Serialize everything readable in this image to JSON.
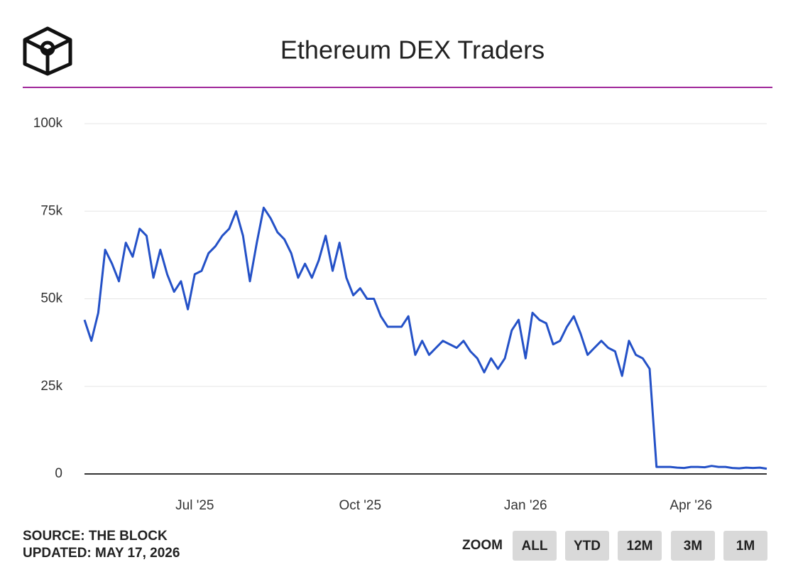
{
  "chart_data": {
    "type": "line",
    "title": "Ethereum DEX Traders",
    "categories": [
      null,
      null,
      null,
      null,
      null,
      null,
      null,
      null,
      null,
      null,
      null,
      null,
      null,
      null,
      null,
      null,
      "Jul '25",
      null,
      null,
      null,
      null,
      null,
      null,
      null,
      null,
      null,
      null,
      null,
      null,
      null,
      null,
      null,
      null,
      null,
      null,
      null,
      null,
      null,
      null,
      null,
      "Oct '25",
      null,
      null,
      null,
      null,
      null,
      null,
      null,
      null,
      null,
      null,
      null,
      null,
      null,
      null,
      null,
      null,
      null,
      null,
      null,
      null,
      null,
      null,
      null,
      "Jan '26",
      null,
      null,
      null,
      null,
      null,
      null,
      null,
      null,
      null,
      null,
      null,
      null,
      null,
      null,
      null,
      null,
      null,
      null,
      null,
      null,
      null,
      null,
      null,
      "Apr '26",
      null,
      null,
      null,
      null,
      null,
      null,
      null,
      null,
      null,
      null,
      null
    ],
    "values": [
      44000,
      38000,
      46000,
      64000,
      60000,
      55000,
      66000,
      62000,
      70000,
      68000,
      56000,
      64000,
      57000,
      52000,
      55000,
      47000,
      57000,
      58000,
      63000,
      65000,
      68000,
      70000,
      75000,
      68000,
      55000,
      66000,
      76000,
      73000,
      69000,
      67000,
      63000,
      56000,
      60000,
      56000,
      61000,
      68000,
      58000,
      66000,
      56000,
      51000,
      53000,
      50000,
      50000,
      45000,
      42000,
      42000,
      42000,
      45000,
      34000,
      38000,
      34000,
      36000,
      38000,
      37000,
      36000,
      38000,
      35000,
      33000,
      29000,
      33000,
      30000,
      33000,
      41000,
      44000,
      33000,
      46000,
      44000,
      43000,
      37000,
      38000,
      42000,
      45000,
      40000,
      34000,
      36000,
      38000,
      36000,
      35000,
      28000,
      38000,
      34000,
      33000,
      30000,
      2000,
      2000,
      2000,
      1800,
      1700,
      2000,
      2000,
      1900,
      2300,
      2000,
      2000,
      1700,
      1600,
      1800,
      1700,
      1800,
      1500
    ],
    "color": "#2451c7",
    "ylim": [
      0,
      100000
    ],
    "yticks": [
      0,
      {
        "value": 25000,
        "label": "25k"
      },
      {
        "value": 50000,
        "label": "50k"
      },
      {
        "value": 75000,
        "label": "75k"
      },
      {
        "value": 100000,
        "label": "100k"
      }
    ],
    "grid": true
  },
  "footer": {
    "source": "SOURCE: THE BLOCK",
    "updated": "UPDATED: MAY 17, 2026"
  },
  "zoom": {
    "label": "ZOOM",
    "buttons": [
      "ALL",
      "YTD",
      "12M",
      "3M",
      "1M"
    ]
  }
}
